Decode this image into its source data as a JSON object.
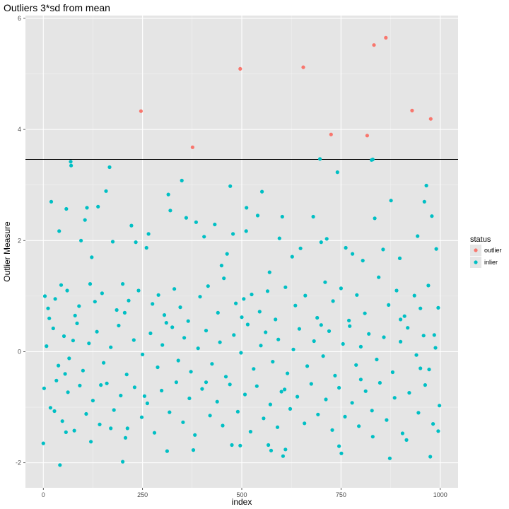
{
  "chart_data": {
    "type": "scatter",
    "title": "Outliers 3*sd from mean",
    "xlabel": "index",
    "ylabel": "Outlier Measure",
    "xlim": [
      -45,
      1045
    ],
    "ylim": [
      -2.45,
      6.05
    ],
    "x_ticks": [
      0,
      250,
      500,
      750,
      1000
    ],
    "y_ticks": [
      -2,
      0,
      2,
      4,
      6
    ],
    "x_tick_labels": [
      "0",
      "250",
      "500",
      "750",
      "1000"
    ],
    "y_tick_labels": [
      "-2",
      "0",
      "2",
      "4",
      "6"
    ],
    "threshold_line": 3.46,
    "grid": true,
    "background": "#e5e5e5",
    "legend": {
      "title": "status",
      "placement": "right",
      "entries": [
        {
          "label": "outlier",
          "color": "#f8766d"
        },
        {
          "label": "inlier",
          "color": "#00bfc4"
        }
      ]
    },
    "series": [
      {
        "name": "outlier",
        "color": "#f8766d",
        "points": [
          [
            246,
            4.33
          ],
          [
            376,
            3.68
          ],
          [
            496,
            5.09
          ],
          [
            655,
            5.12
          ],
          [
            725,
            3.91
          ],
          [
            816,
            3.89
          ],
          [
            833,
            5.52
          ],
          [
            863,
            5.65
          ],
          [
            929,
            4.34
          ],
          [
            976,
            4.19
          ]
        ]
      },
      {
        "name": "inlier",
        "color": "#00bfc4",
        "points": [
          [
            69,
            3.42
          ],
          [
            70,
            3.35
          ],
          [
            167,
            3.32
          ],
          [
            349,
            3.08
          ],
          [
            471,
            2.98
          ],
          [
            551,
            2.88
          ],
          [
            697,
            3.47
          ],
          [
            741,
            3.23
          ],
          [
            827,
            3.45
          ],
          [
            830,
            3.46
          ],
          [
            965,
            2.99
          ],
          [
            20,
            2.7
          ],
          [
            58,
            2.57
          ],
          [
            110,
            2.59
          ],
          [
            138,
            2.61
          ],
          [
            158,
            2.89
          ],
          [
            222,
            2.27
          ],
          [
            315,
            2.83
          ],
          [
            320,
            2.54
          ],
          [
            360,
            2.41
          ],
          [
            385,
            2.33
          ],
          [
            432,
            2.29
          ],
          [
            512,
            2.59
          ],
          [
            540,
            2.45
          ],
          [
            602,
            2.43
          ],
          [
            680,
            2.43
          ],
          [
            876,
            2.72
          ],
          [
            960,
            2.7
          ],
          [
            979,
            2.44
          ],
          [
            40,
            2.17
          ],
          [
            95,
            2.0
          ],
          [
            105,
            2.37
          ],
          [
            122,
            1.7
          ],
          [
            175,
            1.98
          ],
          [
            233,
            1.97
          ],
          [
            260,
            1.87
          ],
          [
            265,
            2.12
          ],
          [
            405,
            2.07
          ],
          [
            449,
            1.55
          ],
          [
            463,
            1.76
          ],
          [
            478,
            2.12
          ],
          [
            511,
            2.17
          ],
          [
            570,
            1.43
          ],
          [
            595,
            2.04
          ],
          [
            627,
            1.71
          ],
          [
            648,
            1.86
          ],
          [
            700,
            1.97
          ],
          [
            714,
            2.03
          ],
          [
            762,
            1.87
          ],
          [
            779,
            1.76
          ],
          [
            805,
            1.64
          ],
          [
            835,
            2.4
          ],
          [
            856,
            1.84
          ],
          [
            898,
            1.68
          ],
          [
            943,
            2.08
          ],
          [
            990,
            1.85
          ],
          [
            4,
            1.0
          ],
          [
            12,
            0.78
          ],
          [
            30,
            0.95
          ],
          [
            45,
            1.2
          ],
          [
            60,
            1.1
          ],
          [
            80,
            0.65
          ],
          [
            90,
            0.82
          ],
          [
            118,
            1.22
          ],
          [
            130,
            0.9
          ],
          [
            148,
            1.05
          ],
          [
            185,
            0.75
          ],
          [
            200,
            1.22
          ],
          [
            215,
            0.92
          ],
          [
            240,
            1.1
          ],
          [
            275,
            0.86
          ],
          [
            290,
            1.02
          ],
          [
            305,
            0.66
          ],
          [
            330,
            1.13
          ],
          [
            345,
            0.8
          ],
          [
            365,
            0.55
          ],
          [
            395,
            0.99
          ],
          [
            415,
            1.18
          ],
          [
            440,
            0.7
          ],
          [
            455,
            1.32
          ],
          [
            485,
            0.87
          ],
          [
            505,
            0.95
          ],
          [
            525,
            1.03
          ],
          [
            545,
            0.72
          ],
          [
            565,
            1.09
          ],
          [
            585,
            0.58
          ],
          [
            610,
            1.16
          ],
          [
            635,
            0.83
          ],
          [
            660,
            1.01
          ],
          [
            690,
            0.61
          ],
          [
            710,
            1.25
          ],
          [
            730,
            0.91
          ],
          [
            750,
            1.14
          ],
          [
            770,
            0.56
          ],
          [
            790,
            1.02
          ],
          [
            810,
            0.69
          ],
          [
            845,
            1.34
          ],
          [
            870,
            0.84
          ],
          [
            890,
            1.1
          ],
          [
            910,
            0.64
          ],
          [
            935,
            1.01
          ],
          [
            950,
            0.78
          ],
          [
            970,
            1.19
          ],
          [
            995,
            0.79
          ],
          [
            8,
            0.1
          ],
          [
            25,
            0.42
          ],
          [
            38,
            -0.25
          ],
          [
            52,
            0.28
          ],
          [
            65,
            -0.12
          ],
          [
            85,
            0.51
          ],
          [
            100,
            -0.34
          ],
          [
            115,
            0.15
          ],
          [
            135,
            0.36
          ],
          [
            152,
            -0.2
          ],
          [
            170,
            0.08
          ],
          [
            190,
            0.47
          ],
          [
            210,
            -0.41
          ],
          [
            228,
            0.21
          ],
          [
            250,
            -0.05
          ],
          [
            270,
            0.33
          ],
          [
            288,
            -0.28
          ],
          [
            300,
            0.12
          ],
          [
            325,
            0.44
          ],
          [
            340,
            -0.16
          ],
          [
            355,
            0.25
          ],
          [
            372,
            -0.36
          ],
          [
            390,
            0.06
          ],
          [
            410,
            0.38
          ],
          [
            425,
            -0.22
          ],
          [
            445,
            0.17
          ],
          [
            460,
            -0.45
          ],
          [
            480,
            0.3
          ],
          [
            498,
            -0.02
          ],
          [
            515,
            0.49
          ],
          [
            530,
            -0.31
          ],
          [
            548,
            0.11
          ],
          [
            560,
            0.35
          ],
          [
            578,
            -0.18
          ],
          [
            592,
            0.22
          ],
          [
            615,
            -0.39
          ],
          [
            630,
            0.04
          ],
          [
            645,
            0.41
          ],
          [
            665,
            -0.26
          ],
          [
            682,
            0.19
          ],
          [
            705,
            -0.08
          ],
          [
            720,
            0.37
          ],
          [
            735,
            -0.43
          ],
          [
            755,
            0.14
          ],
          [
            772,
            0.46
          ],
          [
            788,
            -0.24
          ],
          [
            800,
            0.09
          ],
          [
            820,
            0.32
          ],
          [
            840,
            -0.14
          ],
          [
            858,
            0.26
          ],
          [
            880,
            -0.37
          ],
          [
            900,
            0.18
          ],
          [
            918,
            0.43
          ],
          [
            940,
            -0.06
          ],
          [
            958,
            0.29
          ],
          [
            972,
            -0.32
          ],
          [
            988,
            0.07
          ],
          [
            2,
            -0.66
          ],
          [
            18,
            -1.01
          ],
          [
            33,
            -0.52
          ],
          [
            48,
            -1.25
          ],
          [
            62,
            -0.73
          ],
          [
            78,
            -1.42
          ],
          [
            92,
            -0.61
          ],
          [
            108,
            -1.12
          ],
          [
            125,
            -0.88
          ],
          [
            142,
            -1.31
          ],
          [
            160,
            -0.57
          ],
          [
            178,
            -1.05
          ],
          [
            195,
            -0.79
          ],
          [
            212,
            -1.38
          ],
          [
            230,
            -0.64
          ],
          [
            248,
            -1.18
          ],
          [
            262,
            -0.93
          ],
          [
            280,
            -1.46
          ],
          [
            298,
            -0.7
          ],
          [
            318,
            -1.09
          ],
          [
            335,
            -0.55
          ],
          [
            352,
            -1.27
          ],
          [
            368,
            -0.84
          ],
          [
            382,
            -1.5
          ],
          [
            400,
            -0.67
          ],
          [
            420,
            -1.15
          ],
          [
            438,
            -0.9
          ],
          [
            452,
            -1.33
          ],
          [
            470,
            -0.59
          ],
          [
            490,
            -1.08
          ],
          [
            508,
            -0.77
          ],
          [
            522,
            -1.44
          ],
          [
            538,
            -0.62
          ],
          [
            555,
            -1.2
          ],
          [
            572,
            -0.95
          ],
          [
            590,
            -1.36
          ],
          [
            608,
            -0.68
          ],
          [
            622,
            -1.03
          ],
          [
            640,
            -0.81
          ],
          [
            658,
            -1.29
          ],
          [
            675,
            -0.58
          ],
          [
            692,
            -1.13
          ],
          [
            712,
            -0.86
          ],
          [
            728,
            -1.41
          ],
          [
            745,
            -0.65
          ],
          [
            760,
            -1.17
          ],
          [
            778,
            -0.92
          ],
          [
            795,
            -1.34
          ],
          [
            812,
            -0.71
          ],
          [
            828,
            -1.06
          ],
          [
            848,
            -0.56
          ],
          [
            865,
            -1.23
          ],
          [
            885,
            -0.83
          ],
          [
            905,
            -1.47
          ],
          [
            922,
            -0.74
          ],
          [
            945,
            -1.1
          ],
          [
            962,
            -0.6
          ],
          [
            982,
            -1.3
          ],
          [
            998,
            -0.97
          ],
          [
            0,
            -1.65
          ],
          [
            28,
            -1.07
          ],
          [
            42,
            -2.04
          ],
          [
            57,
            -1.45
          ],
          [
            120,
            -1.62
          ],
          [
            170,
            -1.38
          ],
          [
            200,
            -1.98
          ],
          [
            207,
            -1.55
          ],
          [
            312,
            -1.79
          ],
          [
            378,
            -1.77
          ],
          [
            475,
            -1.68
          ],
          [
            496,
            -1.69
          ],
          [
            567,
            -1.68
          ],
          [
            574,
            -1.78
          ],
          [
            604,
            -1.88
          ],
          [
            610,
            -1.76
          ],
          [
            745,
            -1.7
          ],
          [
            751,
            -1.83
          ],
          [
            830,
            -1.53
          ],
          [
            873,
            -1.92
          ],
          [
            915,
            -1.59
          ],
          [
            975,
            -1.89
          ],
          [
            995,
            -1.43
          ],
          [
            15,
            0.6
          ],
          [
            55,
            -0.4
          ],
          [
            75,
            0.2
          ],
          [
            145,
            -0.6
          ],
          [
            205,
            0.7
          ],
          [
            255,
            -0.8
          ],
          [
            310,
            0.52
          ],
          [
            410,
            -0.55
          ],
          [
            500,
            0.62
          ],
          [
            600,
            -0.72
          ],
          [
            700,
            0.48
          ],
          [
            800,
            -0.5
          ],
          [
            900,
            0.58
          ],
          [
            950,
            -0.3
          ],
          [
            985,
            0.3
          ]
        ]
      }
    ]
  }
}
